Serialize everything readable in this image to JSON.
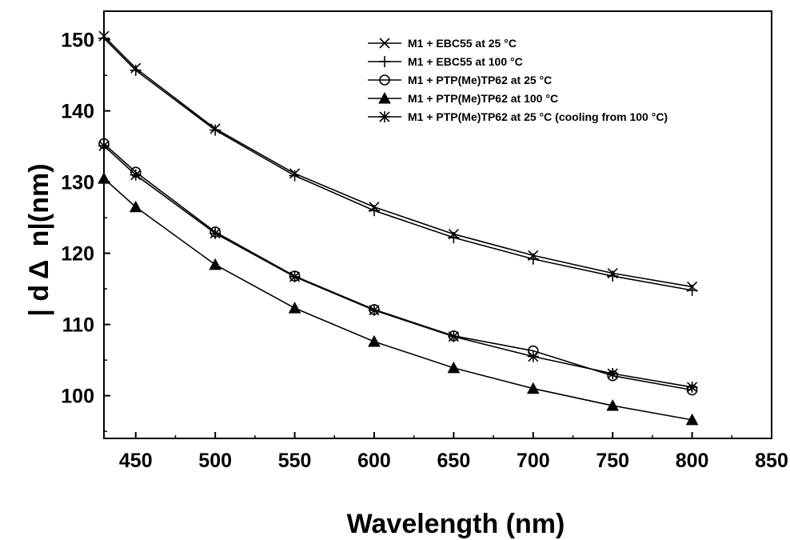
{
  "chart_data": {
    "type": "line",
    "xlabel": "Wavelength (nm)",
    "ylabel": "| d Δ  n|(nm)",
    "xlim": [
      430,
      850
    ],
    "ylim": [
      94,
      154
    ],
    "x_ticks": [
      450,
      500,
      550,
      600,
      650,
      700,
      750,
      800,
      850
    ],
    "y_ticks": [
      100,
      110,
      120,
      130,
      140,
      150
    ],
    "grid": false,
    "legend_position": "top-right",
    "series": [
      {
        "name": "M1 + EBC55 at 25 °C",
        "marker": "x",
        "x": [
          430,
          450,
          500,
          550,
          600,
          650,
          700,
          750,
          800
        ],
        "values": [
          150.5,
          146.0,
          137.5,
          131.2,
          126.5,
          122.7,
          119.7,
          117.2,
          115.3
        ]
      },
      {
        "name": "M1 + EBC55 at 100 °C",
        "marker": "plus",
        "x": [
          430,
          450,
          500,
          550,
          600,
          650,
          700,
          750,
          800
        ],
        "values": [
          150.2,
          145.7,
          137.3,
          130.9,
          126.0,
          122.2,
          119.2,
          116.8,
          114.8
        ]
      },
      {
        "name": "M1 + PTP(Me)TP62 at 25 °C",
        "marker": "circle",
        "x": [
          430,
          450,
          500,
          550,
          600,
          650,
          700,
          750,
          800
        ],
        "values": [
          135.4,
          131.4,
          123.0,
          116.8,
          112.1,
          108.4,
          106.3,
          102.8,
          100.8
        ]
      },
      {
        "name": "M1 + PTP(Me)TP62 at 100 °C",
        "marker": "triangle",
        "x": [
          430,
          450,
          500,
          550,
          600,
          650,
          700,
          750,
          800
        ],
        "values": [
          130.5,
          126.5,
          118.4,
          112.3,
          107.6,
          103.9,
          101.0,
          98.6,
          96.6
        ]
      },
      {
        "name": "M1 + PTP(Me)TP62 at 25 °C (cooling from 100 °C)",
        "marker": "asterisk",
        "x": [
          430,
          450,
          500,
          550,
          600,
          650,
          700,
          750,
          800
        ],
        "values": [
          135.1,
          131.0,
          122.8,
          116.7,
          112.0,
          108.3,
          105.5,
          103.1,
          101.2
        ]
      }
    ]
  }
}
